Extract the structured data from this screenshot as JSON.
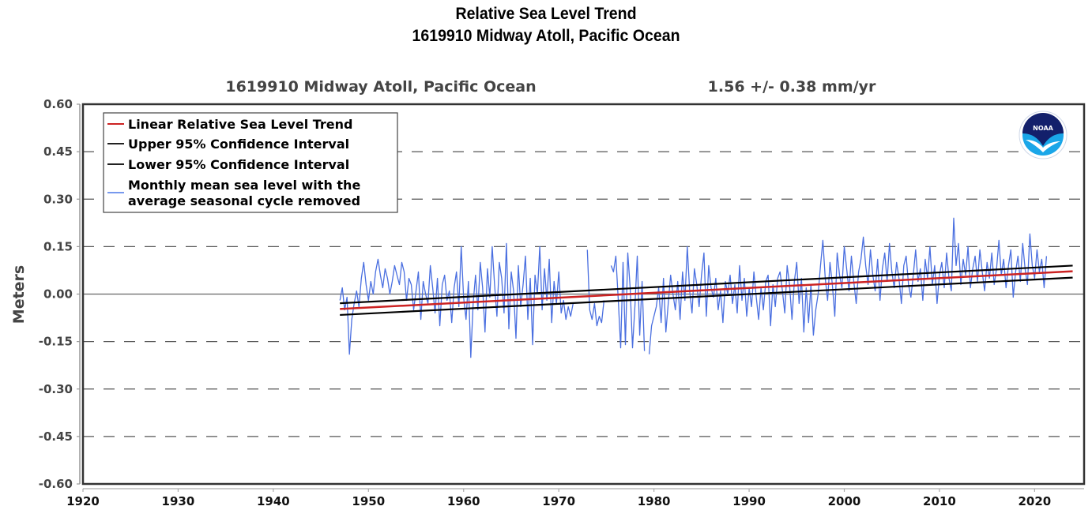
{
  "page": {
    "title_line1": "Relative Sea Level Trend",
    "title_line2": "1619910 Midway Atoll, Pacific Ocean"
  },
  "chart_data": {
    "type": "line",
    "title": "Relative Sea Level Trend",
    "subtitle": "1619910 Midway Atoll, Pacific Ocean",
    "station_label": "1619910 Midway Atoll, Pacific Ocean",
    "trend_label": "1.56 +/-  0.38 mm/yr",
    "trend_mm_per_yr": 1.56,
    "trend_ci_mm_per_yr": 0.38,
    "xlabel": "",
    "ylabel": "Meters",
    "xlim": [
      1920,
      2025.2
    ],
    "ylim": [
      -0.6,
      0.6
    ],
    "x_ticks": [
      1920,
      1930,
      1940,
      1950,
      1960,
      1970,
      1980,
      1990,
      2000,
      2010,
      2020
    ],
    "x_tick_labels": [
      "1920",
      "1930",
      "1940",
      "1950",
      "1960",
      "1970",
      "1980",
      "1990",
      "2000",
      "2010",
      "2020"
    ],
    "y_ticks": [
      0.6,
      0.45,
      0.3,
      0.15,
      0.0,
      -0.15,
      -0.3,
      -0.45,
      -0.6
    ],
    "y_tick_labels": [
      "0.60",
      "0.45",
      "0.30",
      "0.15",
      "0.00",
      "-0.15",
      "-0.30",
      "-0.45",
      "-0.60"
    ],
    "grid": "dashed horizontal at y ticks; solid line at 0.00",
    "legend": {
      "placement": "top-left",
      "entries": [
        {
          "label": "Linear Relative Sea Level Trend",
          "color": "#cc2222"
        },
        {
          "label": "Upper 95% Confidence Interval",
          "color": "#000000"
        },
        {
          "label": "Lower 95% Confidence Interval",
          "color": "#000000"
        },
        {
          "label": "Monthly mean sea level with the",
          "label2": "average seasonal cycle removed",
          "color": "#7799ee"
        }
      ]
    },
    "logo": "noaa-logo",
    "series": [
      {
        "name": "Linear Relative Sea Level Trend",
        "color": "#cc2222",
        "x": [
          1947.0,
          2024.0
        ],
        "y": [
          -0.047,
          0.072
        ]
      },
      {
        "name": "Upper 95% Confidence Interval",
        "color": "#000000",
        "x": [
          1947.0,
          2024.0
        ],
        "y": [
          -0.029,
          0.09
        ]
      },
      {
        "name": "Lower 95% Confidence Interval",
        "color": "#000000",
        "x": [
          1947.0,
          2024.0
        ],
        "y": [
          -0.066,
          0.052
        ]
      },
      {
        "name": "Monthly mean sea level with the average seasonal cycle removed",
        "color": "#4a6fe0",
        "start_year": 1947.0,
        "step_years": 0.25,
        "y": [
          -0.02,
          0.02,
          -0.05,
          -0.01,
          -0.19,
          -0.08,
          -0.03,
          0.01,
          -0.04,
          0.05,
          0.1,
          0.03,
          -0.02,
          0.04,
          0.0,
          0.07,
          0.11,
          0.06,
          0.02,
          0.08,
          0.05,
          0.0,
          0.04,
          0.09,
          0.06,
          0.03,
          0.1,
          0.07,
          -0.02,
          0.05,
          0.03,
          -0.05,
          0.01,
          0.07,
          -0.08,
          0.04,
          0.0,
          -0.03,
          0.09,
          0.02,
          -0.06,
          0.05,
          -0.1,
          0.03,
          0.06,
          -0.02,
          0.01,
          -0.09,
          0.02,
          0.07,
          -0.04,
          0.15,
          -0.01,
          -0.08,
          0.04,
          -0.2,
          -0.03,
          0.06,
          -0.05,
          0.1,
          0.02,
          -0.12,
          0.08,
          -0.01,
          0.15,
          0.03,
          -0.07,
          0.1,
          0.05,
          -0.06,
          0.16,
          -0.11,
          0.07,
          0.01,
          -0.14,
          0.09,
          -0.04,
          0.03,
          0.12,
          -0.08,
          0.05,
          -0.16,
          0.06,
          0.0,
          0.15,
          -0.05,
          0.08,
          -0.02,
          0.11,
          -0.09,
          0.04,
          -0.03,
          0.07,
          -0.06,
          -0.02,
          -0.08,
          -0.04,
          -0.07,
          -0.03,
          null,
          null,
          null,
          null,
          null,
          0.14,
          -0.05,
          -0.08,
          -0.03,
          -0.1,
          -0.07,
          -0.09,
          -0.02,
          null,
          null,
          0.09,
          0.07,
          0.12,
          -0.02,
          -0.17,
          0.1,
          -0.16,
          0.13,
          0.02,
          -0.17,
          -0.04,
          0.12,
          -0.13,
          0.04,
          -0.18,
          null,
          -0.19,
          -0.1,
          -0.07,
          -0.04,
          0.02,
          -0.09,
          0.05,
          -0.12,
          -0.03,
          0.06,
          0.0,
          -0.05,
          0.04,
          -0.08,
          0.07,
          -0.02,
          0.15,
          0.01,
          -0.06,
          0.08,
          0.03,
          -0.04,
          0.06,
          0.13,
          -0.07,
          0.09,
          0.02,
          -0.01,
          0.05,
          -0.05,
          0.01,
          -0.09,
          0.04,
          0.0,
          0.06,
          -0.03,
          0.03,
          -0.06,
          0.09,
          -0.02,
          0.05,
          -0.07,
          0.02,
          -0.04,
          0.07,
          -0.01,
          -0.08,
          0.02,
          -0.05,
          0.04,
          0.06,
          -0.1,
          0.03,
          -0.04,
          0.05,
          0.07,
          0.01,
          -0.06,
          0.09,
          0.03,
          -0.08,
          0.04,
          0.1,
          -0.03,
          0.05,
          -0.12,
          0.02,
          -0.09,
          0.03,
          -0.13,
          -0.05,
          0.0,
          0.09,
          0.17,
          0.05,
          -0.02,
          0.1,
          0.03,
          -0.07,
          0.13,
          0.06,
          0.02,
          0.15,
          0.08,
          0.01,
          0.12,
          0.04,
          -0.03,
          0.07,
          0.11,
          0.18,
          0.09,
          0.03,
          0.14,
          0.06,
          0.01,
          0.11,
          -0.02,
          0.08,
          0.13,
          0.04,
          0.16,
          0.07,
          0.02,
          0.1,
          0.05,
          -0.03,
          0.09,
          0.12,
          0.03,
          -0.01,
          0.06,
          0.14,
          0.04,
          0.08,
          -0.02,
          0.11,
          0.05,
          0.15,
          0.03,
          0.09,
          -0.03,
          0.06,
          0.1,
          0.02,
          0.13,
          0.05,
          0.01,
          0.24,
          0.09,
          0.16,
          0.03,
          0.11,
          0.06,
          0.15,
          0.02,
          0.08,
          0.12,
          0.04,
          0.14,
          0.07,
          0.01,
          0.1,
          0.05,
          0.13,
          0.03,
          0.08,
          0.17,
          0.06,
          0.11,
          0.02,
          0.09,
          0.14,
          -0.01,
          0.07,
          0.12,
          0.04,
          0.16,
          0.08,
          0.03,
          0.19,
          0.09,
          0.05,
          0.14,
          0.07,
          0.11,
          0.02,
          0.12
        ]
      }
    ]
  }
}
